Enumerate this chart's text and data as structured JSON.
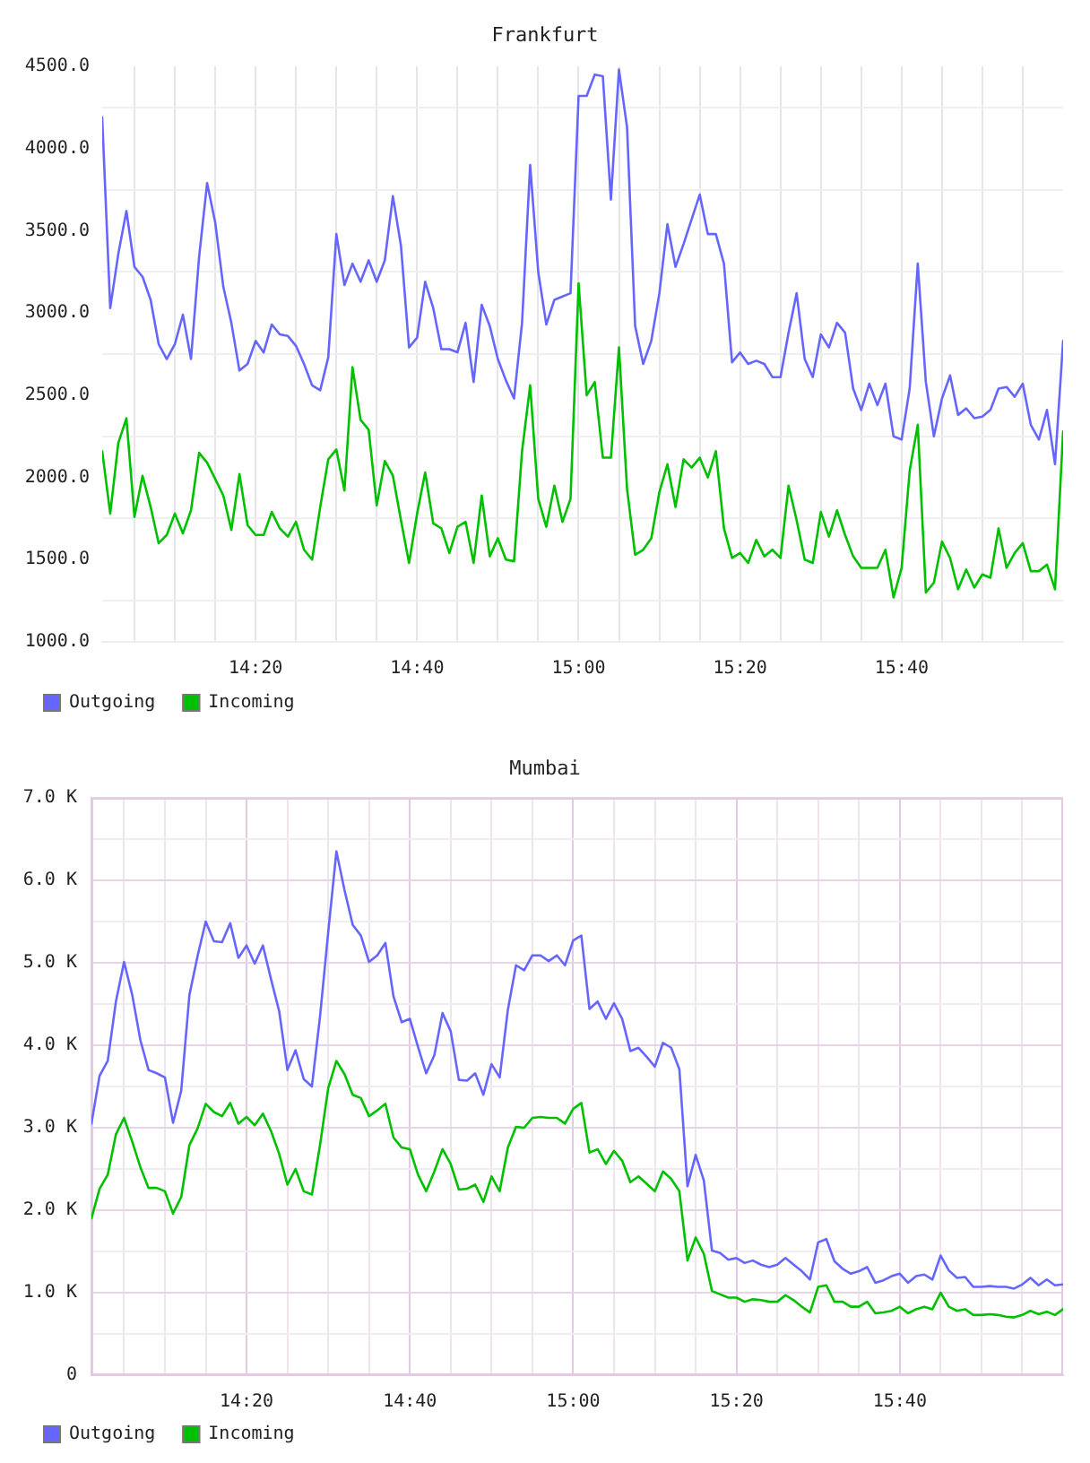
{
  "chart_data": [
    {
      "type": "line",
      "title": "Frankfurt",
      "x": [
        14.0167,
        14.0333,
        14.05,
        14.0667,
        14.0833,
        14.1,
        14.1167,
        14.1333,
        14.15,
        14.1667,
        14.1833,
        14.2,
        14.2167,
        14.2333,
        14.25,
        14.2667,
        14.2833,
        14.3,
        14.3167,
        14.3333,
        14.35,
        14.3667,
        14.3833,
        14.4,
        14.4167,
        14.4333,
        14.45,
        14.4667,
        14.4833,
        14.5,
        14.5167,
        14.5333,
        14.55,
        14.5667,
        14.5833,
        14.6,
        14.6167,
        14.6333,
        14.65,
        14.6667,
        14.6833,
        14.7,
        14.7167,
        14.7333,
        14.75,
        14.7667,
        14.7833,
        14.8,
        14.8167,
        14.8333,
        14.85,
        14.8667,
        14.8833,
        14.9,
        14.9167,
        14.9333,
        14.95,
        14.9667,
        14.9833,
        15,
        15.0167,
        15.0333,
        15.05,
        15.0667,
        15.0833,
        15.1,
        15.1167,
        15.1333,
        15.15,
        15.1667,
        15.1833,
        15.2,
        15.2167,
        15.2333,
        15.25,
        15.2667,
        15.2833,
        15.3,
        15.3167,
        15.3333,
        15.35,
        15.3667,
        15.3833,
        15.4,
        15.4167,
        15.4333,
        15.45,
        15.4667,
        15.4833,
        15.5,
        15.5167,
        15.5333,
        15.55,
        15.5667,
        15.5833,
        15.6,
        15.6167,
        15.6333,
        15.65,
        15.6667,
        15.6833,
        15.7,
        15.7167,
        15.7333,
        15.75,
        15.7667,
        15.7833,
        15.8,
        15.8167,
        15.8333,
        15.85,
        15.8667,
        15.8833,
        15.9,
        15.9167,
        15.9333,
        15.95,
        15.9667,
        15.9833,
        16
      ],
      "xlim": [
        14.0167,
        16
      ],
      "xticks": [
        {
          "value": 14.0833,
          "label": null
        },
        {
          "value": 14.1667,
          "label": null
        },
        {
          "value": 14.25,
          "label": null
        },
        {
          "value": 14.3333,
          "label": "14:20"
        },
        {
          "value": 14.4167,
          "label": null
        },
        {
          "value": 14.5,
          "label": null
        },
        {
          "value": 14.5833,
          "label": null
        },
        {
          "value": 14.6667,
          "label": "14:40"
        },
        {
          "value": 14.75,
          "label": null
        },
        {
          "value": 14.8333,
          "label": null
        },
        {
          "value": 14.9167,
          "label": null
        },
        {
          "value": 15,
          "label": "15:00"
        },
        {
          "value": 15.0833,
          "label": null
        },
        {
          "value": 15.1667,
          "label": null
        },
        {
          "value": 15.25,
          "label": null
        },
        {
          "value": 15.3333,
          "label": "15:20"
        },
        {
          "value": 15.4167,
          "label": null
        },
        {
          "value": 15.5,
          "label": null
        },
        {
          "value": 15.5833,
          "label": null
        },
        {
          "value": 15.6667,
          "label": "15:40"
        },
        {
          "value": 15.75,
          "label": null
        },
        {
          "value": 15.8333,
          "label": null
        },
        {
          "value": 15.9167,
          "label": null
        }
      ],
      "ylim": [
        1000,
        4500
      ],
      "yticks": [
        {
          "value": 1000,
          "label": "1000.0"
        },
        {
          "value": 1250,
          "label": null
        },
        {
          "value": 1500,
          "label": "1500.0"
        },
        {
          "value": 1750,
          "label": null
        },
        {
          "value": 2000,
          "label": "2000.0"
        },
        {
          "value": 2250,
          "label": null
        },
        {
          "value": 2500,
          "label": "2500.0"
        },
        {
          "value": 2750,
          "label": null
        },
        {
          "value": 3000,
          "label": "3000.0"
        },
        {
          "value": 3250,
          "label": null
        },
        {
          "value": 3500,
          "label": "3500.0"
        },
        {
          "value": 3750,
          "label": null
        },
        {
          "value": 4000,
          "label": "4000.0"
        },
        {
          "value": 4250,
          "label": null
        },
        {
          "value": 4500,
          "label": "4500.0"
        }
      ],
      "series": [
        {
          "name": "Outgoing",
          "color": "#6666ff",
          "values": [
            4190,
            3030,
            3360,
            3620,
            3280,
            3220,
            3080,
            2810,
            2720,
            2810,
            2990,
            2720,
            3340,
            3790,
            3550,
            3160,
            2940,
            2650,
            2690,
            2830,
            2760,
            2930,
            2870,
            2860,
            2800,
            2690,
            2560,
            2530,
            2730,
            3480,
            3170,
            3300,
            3190,
            3320,
            3190,
            3320,
            3710,
            3410,
            2790,
            2850,
            3190,
            3030,
            2780,
            2780,
            2760,
            2940,
            2580,
            3050,
            2920,
            2720,
            2590,
            2480,
            2940,
            3900,
            3250,
            2930,
            3080,
            3100,
            3120,
            4320,
            4320,
            4450,
            4440,
            3690,
            4480,
            4130,
            2920,
            2690,
            2830,
            3120,
            3540,
            3280,
            3420,
            3570,
            3720,
            3480,
            3480,
            3300,
            2700,
            2760,
            2690,
            2710,
            2690,
            2610,
            2610,
            2880,
            3120,
            2720,
            2610,
            2870,
            2790,
            2940,
            2880,
            2540,
            2410,
            2570,
            2440,
            2570,
            2250,
            2230,
            2540,
            3300,
            2580,
            2250,
            2480,
            2620,
            2380,
            2420,
            2360,
            2370,
            2410,
            2540,
            2550,
            2490,
            2570,
            2320,
            2230,
            2410,
            2080,
            2830
          ]
        },
        {
          "name": "Incoming",
          "color": "#00c000",
          "values": [
            2160,
            1780,
            2210,
            2360,
            1760,
            2010,
            1820,
            1600,
            1650,
            1780,
            1660,
            1800,
            2150,
            2090,
            1990,
            1890,
            1680,
            2020,
            1710,
            1650,
            1650,
            1790,
            1690,
            1640,
            1730,
            1560,
            1500,
            1820,
            2110,
            2170,
            1920,
            2670,
            2350,
            2290,
            1830,
            2100,
            2010,
            1740,
            1480,
            1780,
            2030,
            1720,
            1690,
            1540,
            1700,
            1730,
            1480,
            1890,
            1520,
            1630,
            1500,
            1490,
            2160,
            2560,
            1870,
            1700,
            1950,
            1730,
            1870,
            3180,
            2500,
            2580,
            2120,
            2120,
            2790,
            1930,
            1530,
            1560,
            1630,
            1910,
            2080,
            1820,
            2110,
            2060,
            2120,
            2000,
            2160,
            1690,
            1510,
            1540,
            1480,
            1620,
            1520,
            1560,
            1510,
            1950,
            1740,
            1500,
            1480,
            1790,
            1640,
            1800,
            1650,
            1520,
            1450,
            1450,
            1450,
            1560,
            1270,
            1450,
            2040,
            2320,
            1300,
            1360,
            1610,
            1510,
            1320,
            1440,
            1330,
            1410,
            1390,
            1690,
            1450,
            1540,
            1600,
            1430,
            1430,
            1470,
            1320,
            2280
          ]
        }
      ],
      "grid": true,
      "legend": "bottom left",
      "marker": "none",
      "line_style": "solid"
    },
    {
      "type": "line",
      "title": "Mumbai",
      "x": [
        14.0167,
        14.0333,
        14.05,
        14.0667,
        14.0833,
        14.1,
        14.1167,
        14.1333,
        14.15,
        14.1667,
        14.1833,
        14.2,
        14.2167,
        14.2333,
        14.25,
        14.2667,
        14.2833,
        14.3,
        14.3167,
        14.3333,
        14.35,
        14.3667,
        14.3833,
        14.4,
        14.4167,
        14.4333,
        14.45,
        14.4667,
        14.4833,
        14.5,
        14.5167,
        14.5333,
        14.55,
        14.5667,
        14.5833,
        14.6,
        14.6167,
        14.6333,
        14.65,
        14.6667,
        14.6833,
        14.7,
        14.7167,
        14.7333,
        14.75,
        14.7667,
        14.7833,
        14.8,
        14.8167,
        14.8333,
        14.85,
        14.8667,
        14.8833,
        14.9,
        14.9167,
        14.9333,
        14.95,
        14.9667,
        14.9833,
        15,
        15.0167,
        15.0333,
        15.05,
        15.0667,
        15.0833,
        15.1,
        15.1167,
        15.1333,
        15.15,
        15.1667,
        15.1833,
        15.2,
        15.2167,
        15.2333,
        15.25,
        15.2667,
        15.2833,
        15.3,
        15.3167,
        15.3333,
        15.35,
        15.3667,
        15.3833,
        15.4,
        15.4167,
        15.4333,
        15.45,
        15.4667,
        15.4833,
        15.5,
        15.5167,
        15.5333,
        15.55,
        15.5667,
        15.5833,
        15.6,
        15.6167,
        15.6333,
        15.65,
        15.6667,
        15.6833,
        15.7,
        15.7167,
        15.7333,
        15.75,
        15.7667,
        15.7833,
        15.8,
        15.8167,
        15.8333,
        15.85,
        15.8667,
        15.8833,
        15.9,
        15.9167,
        15.9333,
        15.95,
        15.9667,
        15.9833,
        16
      ],
      "xlim": [
        14.0167,
        16
      ],
      "xticks": [
        {
          "value": 14.0833,
          "label": null
        },
        {
          "value": 14.1667,
          "label": null
        },
        {
          "value": 14.25,
          "label": null
        },
        {
          "value": 14.3333,
          "label": "14:20"
        },
        {
          "value": 14.4167,
          "label": null
        },
        {
          "value": 14.5,
          "label": null
        },
        {
          "value": 14.5833,
          "label": null
        },
        {
          "value": 14.6667,
          "label": "14:40"
        },
        {
          "value": 14.75,
          "label": null
        },
        {
          "value": 14.8333,
          "label": null
        },
        {
          "value": 14.9167,
          "label": null
        },
        {
          "value": 15,
          "label": "15:00"
        },
        {
          "value": 15.0833,
          "label": null
        },
        {
          "value": 15.1667,
          "label": null
        },
        {
          "value": 15.25,
          "label": null
        },
        {
          "value": 15.3333,
          "label": "15:20"
        },
        {
          "value": 15.4167,
          "label": null
        },
        {
          "value": 15.5,
          "label": null
        },
        {
          "value": 15.5833,
          "label": null
        },
        {
          "value": 15.6667,
          "label": "15:40"
        },
        {
          "value": 15.75,
          "label": null
        },
        {
          "value": 15.8333,
          "label": null
        },
        {
          "value": 15.9167,
          "label": null
        }
      ],
      "ylim": [
        0,
        7000
      ],
      "yticks": [
        0,
        {
          "value": 500,
          "label": null
        },
        {
          "value": 1000,
          "label": "1.0 K"
        },
        {
          "value": 1500,
          "label": null
        },
        {
          "value": 2000,
          "label": "2.0 K"
        },
        {
          "value": 2500,
          "label": null
        },
        {
          "value": 3000,
          "label": "3.0 K"
        },
        {
          "value": 3500,
          "label": null
        },
        {
          "value": 4000,
          "label": "4.0 K"
        },
        {
          "value": 4500,
          "label": null
        },
        {
          "value": 5000,
          "label": "5.0 K"
        },
        {
          "value": 5500,
          "label": null
        },
        {
          "value": 6000,
          "label": "6.0 K"
        },
        {
          "value": 6500,
          "label": null
        },
        {
          "value": 7000,
          "label": "7.0 K"
        }
      ],
      "series": [
        {
          "name": "Outgoing",
          "color": "#6666ff",
          "values": [
            3050,
            3630,
            3810,
            4530,
            5010,
            4610,
            4060,
            3700,
            3660,
            3610,
            3060,
            3450,
            4610,
            5080,
            5500,
            5260,
            5250,
            5480,
            5060,
            5210,
            4990,
            5210,
            4800,
            4410,
            3700,
            3940,
            3590,
            3500,
            4350,
            5370,
            6350,
            5880,
            5460,
            5330,
            5010,
            5090,
            5240,
            4590,
            4280,
            4320,
            3980,
            3660,
            3880,
            4390,
            4170,
            3580,
            3570,
            3660,
            3400,
            3770,
            3610,
            4430,
            4970,
            4910,
            5090,
            5090,
            5020,
            5090,
            4970,
            5270,
            5330,
            4440,
            4530,
            4320,
            4510,
            4320,
            3930,
            3970,
            3860,
            3740,
            4030,
            3970,
            3710,
            2290,
            2670,
            2360,
            1510,
            1480,
            1400,
            1420,
            1360,
            1390,
            1340,
            1310,
            1340,
            1420,
            1340,
            1260,
            1160,
            1610,
            1650,
            1380,
            1290,
            1230,
            1260,
            1310,
            1120,
            1150,
            1200,
            1230,
            1120,
            1200,
            1220,
            1160,
            1450,
            1270,
            1180,
            1190,
            1070,
            1070,
            1080,
            1070,
            1070,
            1050,
            1100,
            1180,
            1090,
            1160,
            1090,
            1100
          ]
        },
        {
          "name": "Incoming",
          "color": "#00c000",
          "values": [
            1900,
            2260,
            2430,
            2920,
            3120,
            2830,
            2520,
            2270,
            2270,
            2230,
            1960,
            2160,
            2790,
            2990,
            3290,
            3190,
            3140,
            3300,
            3050,
            3130,
            3030,
            3170,
            2960,
            2680,
            2310,
            2500,
            2230,
            2190,
            2790,
            3480,
            3810,
            3650,
            3400,
            3360,
            3140,
            3210,
            3290,
            2880,
            2760,
            2740,
            2430,
            2230,
            2470,
            2740,
            2560,
            2250,
            2260,
            2310,
            2100,
            2410,
            2230,
            2760,
            3010,
            3000,
            3120,
            3130,
            3120,
            3120,
            3050,
            3230,
            3300,
            2700,
            2740,
            2560,
            2720,
            2600,
            2340,
            2410,
            2320,
            2230,
            2470,
            2380,
            2230,
            1390,
            1670,
            1470,
            1020,
            980,
            940,
            940,
            890,
            920,
            910,
            890,
            890,
            970,
            910,
            830,
            760,
            1070,
            1090,
            890,
            890,
            830,
            830,
            890,
            750,
            760,
            780,
            830,
            750,
            800,
            830,
            800,
            1000,
            830,
            780,
            800,
            730,
            730,
            740,
            730,
            710,
            700,
            730,
            780,
            740,
            770,
            730,
            800
          ]
        }
      ],
      "grid": true,
      "legend": "bottom left",
      "marker": "none",
      "line_style": "solid"
    }
  ]
}
